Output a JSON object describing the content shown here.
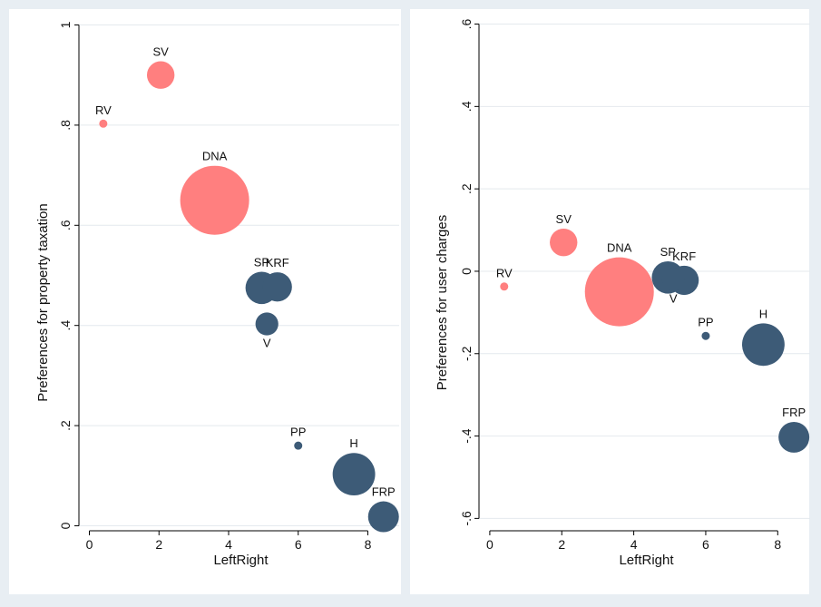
{
  "colors": {
    "background": "#e8eef3",
    "panel": "#ffffff",
    "left_party": "#ff7f7f",
    "right_party": "#3d5b77",
    "grid": "#e4e9ee"
  },
  "chart_data": [
    {
      "type": "scatter",
      "title": "",
      "xlabel": "LeftRight",
      "ylabel": "Preferences for property taxation",
      "xlim": [
        -0.3,
        8.9
      ],
      "ylim": [
        -0.01,
        1.01
      ],
      "xticks": [
        0,
        2,
        4,
        6,
        8
      ],
      "xtick_labels": [
        "0",
        "2",
        "4",
        "6",
        "8"
      ],
      "yticks": [
        0,
        0.2,
        0.4,
        0.6,
        0.8,
        1
      ],
      "ytick_labels": [
        "0",
        ".2",
        ".4",
        ".6",
        ".8",
        "1"
      ],
      "grid": true,
      "bubble": true,
      "points": [
        {
          "label": "RV",
          "x": 0.4,
          "y": 0.803,
          "size": 1.0,
          "group": "left",
          "label_pos": "above"
        },
        {
          "label": "SV",
          "x": 2.05,
          "y": 0.9,
          "size": 16,
          "group": "left",
          "label_pos": "above"
        },
        {
          "label": "DNA",
          "x": 3.6,
          "y": 0.65,
          "size": 100,
          "group": "left",
          "label_pos": "above"
        },
        {
          "label": "SP",
          "x": 4.95,
          "y": 0.475,
          "size": 22,
          "group": "right",
          "label_pos": "above"
        },
        {
          "label": "KRF",
          "x": 5.4,
          "y": 0.477,
          "size": 18,
          "group": "right",
          "label_pos": "above"
        },
        {
          "label": "V",
          "x": 5.1,
          "y": 0.403,
          "size": 11,
          "group": "right",
          "label_pos": "below"
        },
        {
          "label": "PP",
          "x": 6.0,
          "y": 0.16,
          "size": 1.2,
          "group": "right",
          "label_pos": "above"
        },
        {
          "label": "H",
          "x": 7.6,
          "y": 0.103,
          "size": 38,
          "group": "right",
          "label_pos": "above"
        },
        {
          "label": "FRP",
          "x": 8.45,
          "y": 0.018,
          "size": 20,
          "group": "right",
          "label_pos": "above"
        }
      ]
    },
    {
      "type": "scatter",
      "title": "",
      "xlabel": "LeftRight",
      "ylabel": "Preferences for user charges",
      "xlim": [
        -0.3,
        8.9
      ],
      "ylim": [
        -0.63,
        0.61
      ],
      "xticks": [
        0,
        2,
        4,
        6,
        8
      ],
      "xtick_labels": [
        "0",
        "2",
        "4",
        "6",
        "8"
      ],
      "yticks": [
        -0.6,
        -0.4,
        -0.2,
        0,
        0.2,
        0.4,
        0.6
      ],
      "ytick_labels": [
        "-.6",
        "-.4",
        "-.2",
        "0",
        ".2",
        ".4",
        ".6"
      ],
      "grid": true,
      "bubble": true,
      "points": [
        {
          "label": "RV",
          "x": 0.4,
          "y": -0.037,
          "size": 1.0,
          "group": "left",
          "label_pos": "above"
        },
        {
          "label": "SV",
          "x": 2.05,
          "y": 0.07,
          "size": 16,
          "group": "left",
          "label_pos": "above"
        },
        {
          "label": "DNA",
          "x": 3.6,
          "y": -0.05,
          "size": 100,
          "group": "left",
          "label_pos": "above"
        },
        {
          "label": "SP",
          "x": 4.95,
          "y": -0.015,
          "size": 22,
          "group": "right",
          "label_pos": "above"
        },
        {
          "label": "KRF",
          "x": 5.4,
          "y": -0.022,
          "size": 18,
          "group": "right",
          "label_pos": "above"
        },
        {
          "label": "V",
          "x": 5.1,
          "y": -0.02,
          "size": 11,
          "group": "right",
          "label_pos": "below"
        },
        {
          "label": "PP",
          "x": 6.0,
          "y": -0.157,
          "size": 1.2,
          "group": "right",
          "label_pos": "above"
        },
        {
          "label": "H",
          "x": 7.6,
          "y": -0.178,
          "size": 38,
          "group": "right",
          "label_pos": "above"
        },
        {
          "label": "FRP",
          "x": 8.45,
          "y": -0.403,
          "size": 20,
          "group": "right",
          "label_pos": "above"
        }
      ]
    }
  ]
}
